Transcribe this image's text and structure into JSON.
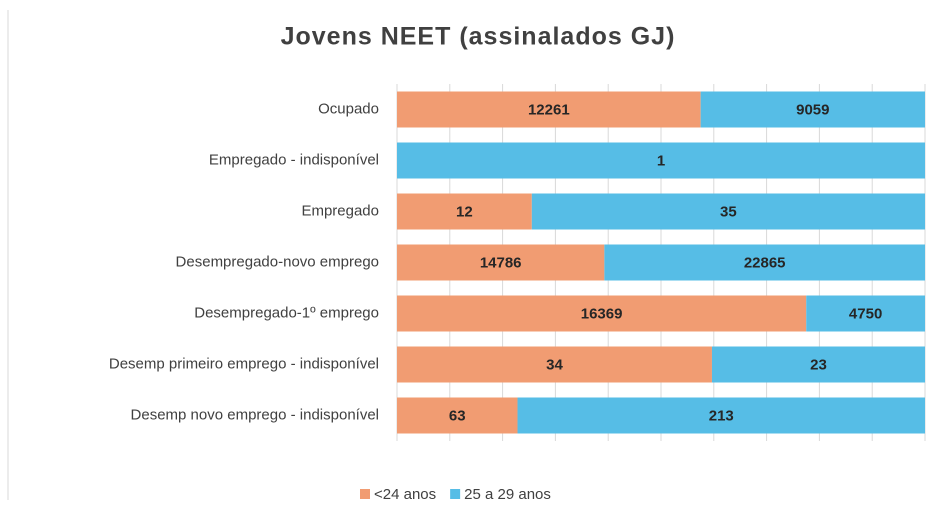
{
  "chart_data": {
    "type": "bar100h",
    "title": "Jovens NEET (assinalados GJ)",
    "categories": [
      "Ocupado",
      "Empregado - indisponível",
      "Empregado",
      "Desempregado-novo emprego",
      "Desempregado-1º emprego",
      "Desemp primeiro emprego - indisponível",
      "Desemp novo emprego - indisponível"
    ],
    "series": [
      {
        "name": "<24 anos",
        "color": "#f19c72",
        "values": [
          12261,
          null,
          12,
          14786,
          16369,
          34,
          63
        ]
      },
      {
        "name": "25 a 29 anos",
        "color": "#56bde6",
        "values": [
          9059,
          1,
          35,
          22865,
          4750,
          23,
          213
        ]
      }
    ],
    "xlim": [
      0,
      100
    ],
    "xticks": [
      0,
      10,
      20,
      30,
      40,
      50,
      60,
      70,
      80,
      90,
      100
    ],
    "grid": true,
    "legend": "bottom"
  }
}
